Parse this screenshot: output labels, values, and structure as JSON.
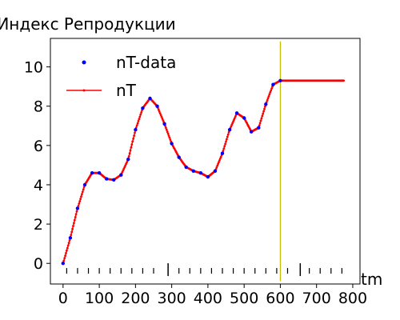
{
  "chart_data": {
    "type": "line",
    "title": "Индекс Репродукции",
    "xlabel": "tm",
    "ylabel": "",
    "xlim": [
      -35,
      820
    ],
    "ylim": [
      -1.05,
      11.45
    ],
    "xticks": [
      0,
      100,
      200,
      300,
      400,
      500,
      600,
      700,
      800
    ],
    "yticks": [
      0,
      2,
      4,
      6,
      8,
      10
    ],
    "grid": false,
    "legend_position": "top-left",
    "colors": {
      "data_markers": "#0000ff",
      "fit_line": "#ff0000",
      "cutoff_line": "#bfbf00",
      "event_ticks": "#000000"
    },
    "series": [
      {
        "name": "nT-data",
        "style": "markers",
        "x": [
          0,
          20,
          40,
          60,
          80,
          100,
          120,
          140,
          160,
          180,
          200,
          220,
          240,
          260,
          280,
          300,
          320,
          340,
          360,
          380,
          400,
          420,
          440,
          460,
          480,
          500,
          520,
          540,
          560,
          580,
          600
        ],
        "y": [
          0.0,
          1.3,
          2.8,
          4.0,
          4.6,
          4.6,
          4.3,
          4.25,
          4.5,
          5.3,
          6.8,
          7.9,
          8.4,
          8.0,
          7.1,
          6.1,
          5.4,
          4.9,
          4.7,
          4.6,
          4.4,
          4.7,
          5.6,
          6.8,
          7.65,
          7.4,
          6.7,
          6.9,
          8.1,
          9.1,
          9.3
        ]
      },
      {
        "name": "nT",
        "style": "line",
        "x": [
          0,
          20,
          40,
          60,
          80,
          100,
          120,
          140,
          160,
          180,
          200,
          220,
          240,
          260,
          280,
          300,
          320,
          340,
          360,
          380,
          400,
          420,
          440,
          460,
          480,
          500,
          520,
          540,
          560,
          580,
          600,
          620,
          640,
          660,
          680,
          700,
          720,
          740,
          760,
          775
        ],
        "y": [
          0.0,
          1.3,
          2.8,
          4.0,
          4.6,
          4.6,
          4.3,
          4.25,
          4.5,
          5.3,
          6.8,
          7.9,
          8.4,
          8.0,
          7.1,
          6.1,
          5.4,
          4.9,
          4.7,
          4.6,
          4.4,
          4.7,
          5.6,
          6.8,
          7.65,
          7.4,
          6.7,
          6.9,
          8.1,
          9.1,
          9.3,
          9.3,
          9.3,
          9.3,
          9.3,
          9.3,
          9.3,
          9.3,
          9.3,
          9.3
        ]
      }
    ],
    "cutoff": {
      "x": 600,
      "y_min": -0.9,
      "y_max": 11.3
    },
    "event_ticks": {
      "x": [
        10,
        40,
        70,
        100,
        130,
        160,
        190,
        220,
        250,
        290,
        320,
        350,
        380,
        410,
        440,
        470,
        500,
        530,
        560,
        590,
        620,
        655,
        680,
        710,
        740,
        770
      ],
      "emphasized_x": [
        290,
        655
      ],
      "base": -0.4
    }
  }
}
